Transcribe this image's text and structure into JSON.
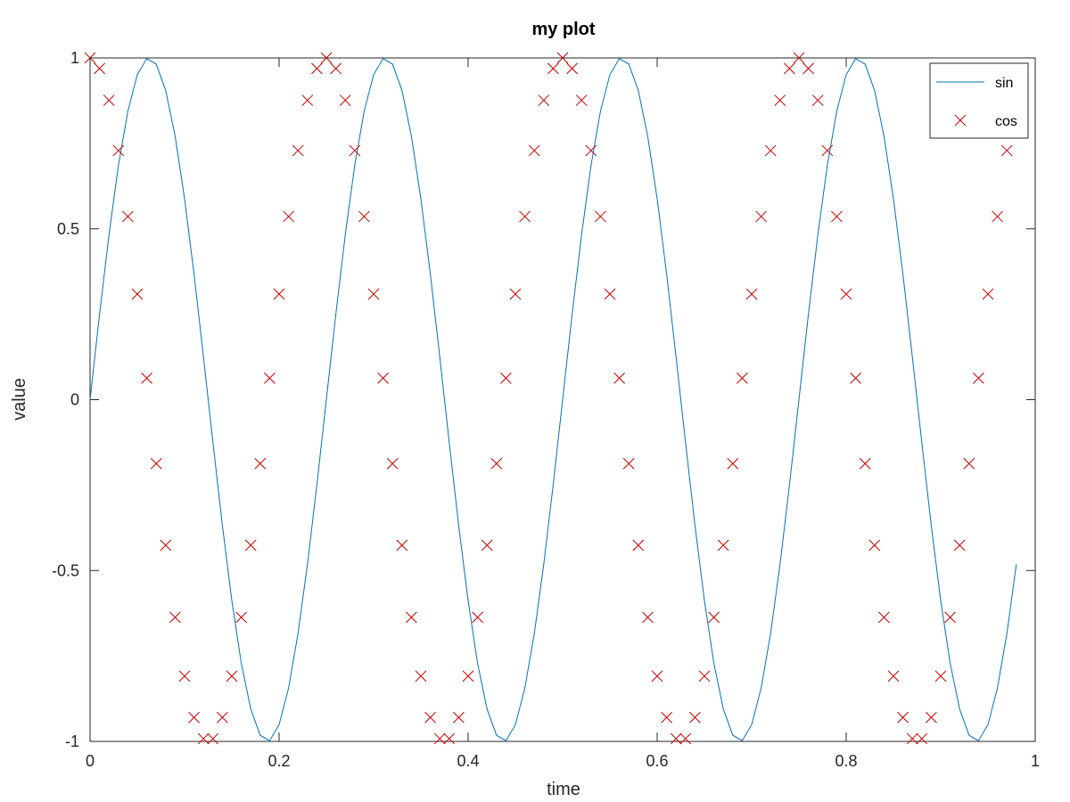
{
  "chart_data": {
    "type": "line",
    "title": "my plot",
    "xlabel": "time",
    "ylabel": "value",
    "xlim": [
      0,
      1
    ],
    "ylim": [
      -1,
      1
    ],
    "xticks": [
      0,
      0.2,
      0.4,
      0.6,
      0.8,
      1
    ],
    "xtick_labels": [
      "0",
      "0.2",
      "0.4",
      "0.6",
      "0.8",
      "1"
    ],
    "yticks": [
      -1,
      -0.5,
      0,
      0.5,
      1
    ],
    "ytick_labels": [
      "-1",
      "-0.5",
      "0",
      "0.5",
      "1"
    ],
    "grid": false,
    "legend_position": "top-right",
    "series": [
      {
        "name": "sin",
        "style": "line",
        "color": "#0072BD",
        "x": [
          0,
          0.01,
          0.02,
          0.03,
          0.04,
          0.05,
          0.06,
          0.07,
          0.08,
          0.09,
          0.1,
          0.11,
          0.12,
          0.13,
          0.14,
          0.15,
          0.16,
          0.17,
          0.18,
          0.19,
          0.2,
          0.21,
          0.22,
          0.23,
          0.24,
          0.25,
          0.26,
          0.27,
          0.28,
          0.29,
          0.3,
          0.31,
          0.32,
          0.33,
          0.34,
          0.35,
          0.36,
          0.37,
          0.38,
          0.39,
          0.4,
          0.41,
          0.42,
          0.43,
          0.44,
          0.45,
          0.46,
          0.47,
          0.48,
          0.49,
          0.5,
          0.51,
          0.52,
          0.53,
          0.54,
          0.55,
          0.56,
          0.57,
          0.58,
          0.59,
          0.6,
          0.61,
          0.62,
          0.63,
          0.64,
          0.65,
          0.66,
          0.67,
          0.68,
          0.69,
          0.7,
          0.71,
          0.72,
          0.73,
          0.74,
          0.75,
          0.76,
          0.77,
          0.78,
          0.79,
          0.8,
          0.81,
          0.82,
          0.83,
          0.84,
          0.85,
          0.86,
          0.87,
          0.88,
          0.89,
          0.9,
          0.91,
          0.92,
          0.93,
          0.94,
          0.95,
          0.96,
          0.97,
          0.98
        ],
        "y": [
          0,
          0.249,
          0.482,
          0.685,
          0.844,
          0.951,
          0.998,
          0.982,
          0.905,
          0.771,
          0.588,
          0.368,
          0.125,
          -0.125,
          -0.368,
          -0.588,
          -0.771,
          -0.905,
          -0.982,
          -0.998,
          -0.951,
          -0.844,
          -0.685,
          -0.482,
          -0.249,
          0,
          0.249,
          0.482,
          0.685,
          0.844,
          0.951,
          0.998,
          0.982,
          0.905,
          0.771,
          0.588,
          0.368,
          0.125,
          -0.125,
          -0.368,
          -0.588,
          -0.771,
          -0.905,
          -0.982,
          -0.998,
          -0.951,
          -0.844,
          -0.685,
          -0.482,
          -0.249,
          0,
          0.249,
          0.482,
          0.685,
          0.844,
          0.951,
          0.998,
          0.982,
          0.905,
          0.771,
          0.588,
          0.368,
          0.125,
          -0.125,
          -0.368,
          -0.588,
          -0.771,
          -0.905,
          -0.982,
          -0.998,
          -0.951,
          -0.844,
          -0.685,
          -0.482,
          -0.249,
          0,
          0.249,
          0.482,
          0.685,
          0.844,
          0.951,
          0.998,
          0.982,
          0.905,
          0.771,
          0.588,
          0.368,
          0.125,
          -0.125,
          -0.368,
          -0.588,
          -0.771,
          -0.905,
          -0.982,
          -0.998,
          -0.951,
          -0.844,
          -0.685,
          -0.482
        ]
      },
      {
        "name": "cos",
        "style": "x-marker",
        "color": "#CC0000",
        "x": [
          0,
          0.01,
          0.02,
          0.03,
          0.04,
          0.05,
          0.06,
          0.07,
          0.08,
          0.09,
          0.1,
          0.11,
          0.12,
          0.13,
          0.14,
          0.15,
          0.16,
          0.17,
          0.18,
          0.19,
          0.2,
          0.21,
          0.22,
          0.23,
          0.24,
          0.25,
          0.26,
          0.27,
          0.28,
          0.29,
          0.3,
          0.31,
          0.32,
          0.33,
          0.34,
          0.35,
          0.36,
          0.37,
          0.38,
          0.39,
          0.4,
          0.41,
          0.42,
          0.43,
          0.44,
          0.45,
          0.46,
          0.47,
          0.48,
          0.49,
          0.5,
          0.51,
          0.52,
          0.53,
          0.54,
          0.55,
          0.56,
          0.57,
          0.58,
          0.59,
          0.6,
          0.61,
          0.62,
          0.63,
          0.64,
          0.65,
          0.66,
          0.67,
          0.68,
          0.69,
          0.7,
          0.71,
          0.72,
          0.73,
          0.74,
          0.75,
          0.76,
          0.77,
          0.78,
          0.79,
          0.8,
          0.81,
          0.82,
          0.83,
          0.84,
          0.85,
          0.86,
          0.87,
          0.88,
          0.89,
          0.9,
          0.91,
          0.92,
          0.93,
          0.94,
          0.95,
          0.96,
          0.97,
          0.98
        ],
        "y": [
          1,
          0.969,
          0.876,
          0.729,
          0.536,
          0.309,
          0.063,
          -0.187,
          -0.426,
          -0.637,
          -0.809,
          -0.93,
          -0.992,
          -0.992,
          -0.93,
          -0.809,
          -0.637,
          -0.426,
          -0.187,
          0.063,
          0.309,
          0.536,
          0.729,
          0.876,
          0.969,
          1,
          0.969,
          0.876,
          0.729,
          0.536,
          0.309,
          0.063,
          -0.187,
          -0.426,
          -0.637,
          -0.809,
          -0.93,
          -0.992,
          -0.992,
          -0.93,
          -0.809,
          -0.637,
          -0.426,
          -0.187,
          0.063,
          0.309,
          0.536,
          0.729,
          0.876,
          0.969,
          1,
          0.969,
          0.876,
          0.729,
          0.536,
          0.309,
          0.063,
          -0.187,
          -0.426,
          -0.637,
          -0.809,
          -0.93,
          -0.992,
          -0.992,
          -0.93,
          -0.809,
          -0.637,
          -0.426,
          -0.187,
          0.063,
          0.309,
          0.536,
          0.729,
          0.876,
          0.969,
          1,
          0.969,
          0.876,
          0.729,
          0.536,
          0.309,
          0.063,
          -0.187,
          -0.426,
          -0.637,
          -0.809,
          -0.93,
          -0.992,
          -0.992,
          -0.93,
          -0.809,
          -0.637,
          -0.426,
          -0.187,
          0.063,
          0.309,
          0.536,
          0.729,
          0.876
        ]
      }
    ]
  }
}
